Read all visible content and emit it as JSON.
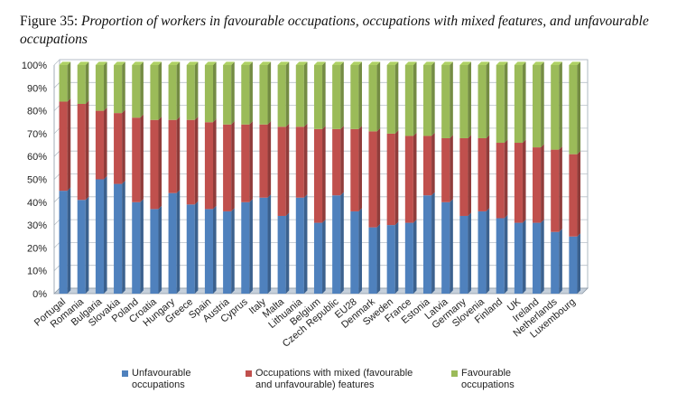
{
  "figure": {
    "label": "Figure 35:",
    "title": "Proportion of workers in favourable occupations, occupations with mixed features, and unfavourable occupations"
  },
  "colors": {
    "unfavourable": "#4f81bd",
    "mixed": "#c0504d",
    "favourable": "#9bbb59"
  },
  "legend": [
    {
      "key": "unfavourable",
      "label": "Unfavourable occupations"
    },
    {
      "key": "mixed",
      "label": "Occupations with mixed (favourable and unfavourable) features"
    },
    {
      "key": "favourable",
      "label": "Favourable occupations"
    }
  ],
  "chart_data": {
    "type": "bar",
    "stacked": true,
    "title": "Proportion of workers in favourable occupations, occupations with mixed features, and unfavourable occupations",
    "xlabel": "",
    "ylabel": "",
    "ylim": [
      0,
      100
    ],
    "ytick_labels": [
      "0%",
      "10%",
      "20%",
      "30%",
      "40%",
      "50%",
      "60%",
      "70%",
      "80%",
      "90%",
      "100%"
    ],
    "grid": true,
    "legend_position": "bottom",
    "categories": [
      "Portugal",
      "Romania",
      "Bulgaria",
      "Slovakia",
      "Poland",
      "Croatia",
      "Hungary",
      "Greece",
      "Spain",
      "Austria",
      "Cyprus",
      "Italy",
      "Malta",
      "Lithuania",
      "Belgium",
      "Czech Republic",
      "EU28",
      "Denmark",
      "Sweden",
      "France",
      "Estonia",
      "Latvia",
      "Germany",
      "Slovenia",
      "Finland",
      "UK",
      "Ireland",
      "Netherlands",
      "Luxembourg"
    ],
    "series": [
      {
        "name": "Unfavourable occupations",
        "key": "unfavourable",
        "values": [
          45,
          41,
          50,
          48,
          40,
          37,
          44,
          39,
          37,
          36,
          40,
          42,
          34,
          42,
          31,
          43,
          36,
          29,
          30,
          31,
          43,
          40,
          34,
          36,
          33,
          31,
          31,
          27,
          25
        ]
      },
      {
        "name": "Occupations with mixed (favourable and unfavourable) features",
        "key": "mixed",
        "values": [
          39,
          42,
          30,
          31,
          37,
          39,
          32,
          37,
          38,
          38,
          34,
          32,
          39,
          31,
          41,
          29,
          36,
          42,
          40,
          38,
          26,
          28,
          34,
          32,
          33,
          35,
          33,
          36,
          36
        ]
      },
      {
        "name": "Favourable occupations",
        "key": "favourable",
        "values": [
          16,
          17,
          20,
          21,
          23,
          24,
          24,
          24,
          25,
          26,
          26,
          26,
          27,
          27,
          28,
          28,
          28,
          29,
          30,
          31,
          31,
          32,
          32,
          32,
          34,
          34,
          36,
          37,
          39
        ]
      }
    ]
  }
}
